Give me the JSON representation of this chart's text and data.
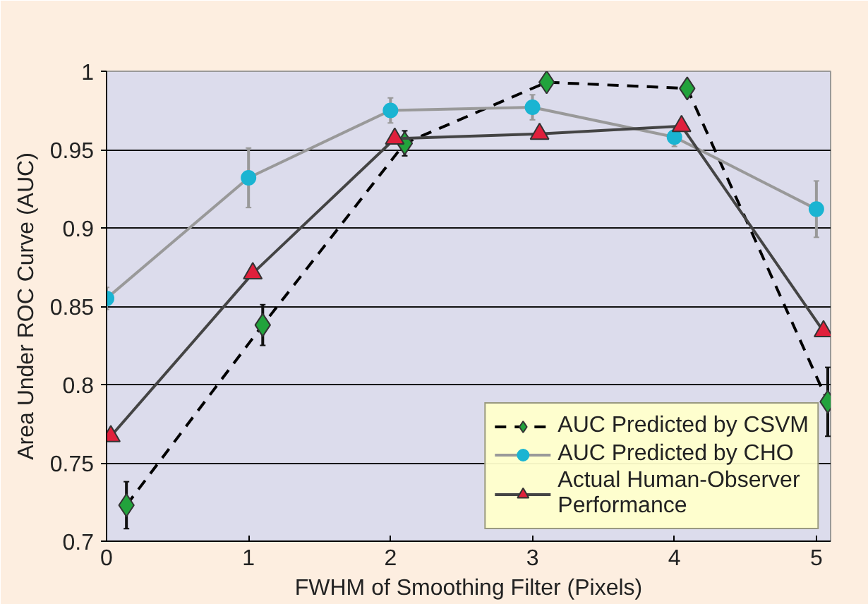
{
  "chart_data": {
    "type": "line",
    "xlabel": "FWHM of Smoothing Filter (Pixels)",
    "ylabel": "Area Under ROC Curve (AUC)",
    "xlim": [
      0,
      5.1
    ],
    "xticks": [
      0,
      1,
      2,
      3,
      4,
      5
    ],
    "ylim": [
      0.7,
      1
    ],
    "yticks": [
      0.7,
      0.75,
      0.8,
      0.85,
      0.9,
      0.95,
      1
    ],
    "grid": "y",
    "legend": "bottom right",
    "series": [
      {
        "name": "AUC Predicted by CSVM",
        "color": "#22a33c",
        "marker": "diamond",
        "line_style": "dashed",
        "x": [
          0.14,
          1.1,
          2.1,
          3.1,
          4.09,
          5.08
        ],
        "values": [
          0.723,
          0.838,
          0.954,
          0.993,
          0.989,
          0.789
        ],
        "errors": [
          0.015,
          0.013,
          0.008,
          null,
          null,
          0.022
        ]
      },
      {
        "name": "AUC Predicted by CHO",
        "color": "#1ab4d2",
        "marker": "circle",
        "line_style": "solid",
        "x": [
          0,
          1,
          2,
          3,
          4,
          5
        ],
        "values": [
          0.855,
          0.932,
          0.975,
          0.977,
          0.958,
          0.912
        ],
        "errors": [
          0.007,
          0.019,
          0.008,
          0.008,
          0.006,
          0.018
        ]
      },
      {
        "name": "Actual Human-Observer Performance",
        "color": "#e0203c",
        "marker": "triangle",
        "line_style": "solid",
        "x": [
          0.03,
          1.03,
          2.03,
          3.05,
          4.05,
          5.05
        ],
        "values": [
          0.767,
          0.871,
          0.957,
          0.96,
          0.965,
          0.834
        ]
      }
    ]
  }
}
